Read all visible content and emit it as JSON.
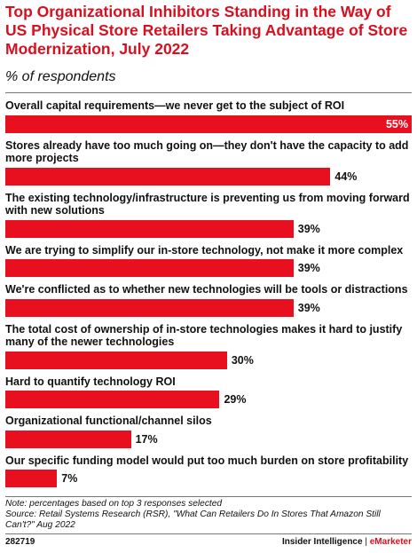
{
  "chart_data": {
    "type": "bar",
    "orientation": "horizontal",
    "title": "Top Organizational Inhibitors Standing in the Way of US Physical Store Retailers Taking Advantage of Store Modernization, July 2022",
    "subtitle": "% of respondents",
    "categories": [
      "Overall capital requirements—we never get to the subject of ROI",
      "Stores already have too much going on—they don't have the capacity to add more projects",
      "The existing technology/infrastructure is preventing us from moving forward with new solutions",
      "We are trying to simplify our in-store technology, not make it more complex",
      "We're conflicted as to whether new technologies will be tools or distractions",
      "The total cost of ownership of in-store technologies makes it hard to justify many of the newer technologies",
      "Hard to quantify technology ROI",
      "Organizational functional/channel silos",
      "Our specific funding model would put too much burden on store profitability"
    ],
    "values": [
      55,
      44,
      39,
      39,
      39,
      30,
      29,
      17,
      7
    ],
    "value_labels": [
      "55%",
      "44%",
      "39%",
      "39%",
      "39%",
      "30%",
      "29%",
      "17%",
      "7%"
    ],
    "xlim": [
      0,
      55
    ],
    "bar_color": "#e8101e",
    "grid": false,
    "legend": "none"
  },
  "footer": {
    "note": "Note: percentages based on top 3 responses selected",
    "source": "Source: Retail Systems Research (RSR), \"What Can Retailers Do In Stores That Amazon Still Can't?\" Aug 2022",
    "chart_id": "282719",
    "brand_primary": "Insider Intelligence",
    "brand_separator": "|",
    "brand_secondary": "eMarketer"
  },
  "colors": {
    "title": "#d80f1f",
    "bar": "#e8101e",
    "brand_accent": "#d80f1f"
  }
}
